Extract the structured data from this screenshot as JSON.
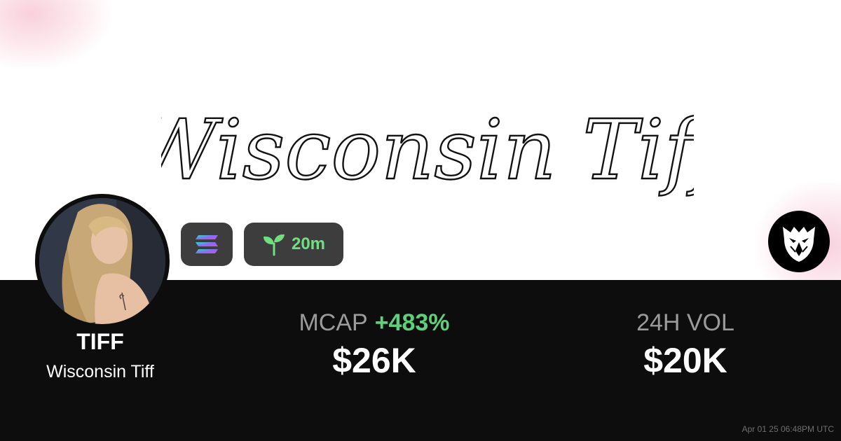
{
  "banner": {
    "script_title": "Wisconsin Tiff",
    "image_icon": "script-lettering-banner"
  },
  "avatar": {
    "icon": "profile-photo"
  },
  "badges": {
    "chain_icon": "solana-logo-icon",
    "age_icon": "sprout-icon",
    "age_text": "20m"
  },
  "platform": {
    "icon": "eagle-head-logo-icon"
  },
  "token": {
    "symbol": "TIFF",
    "name": "Wisconsin Tiff"
  },
  "stats": {
    "mcap_label": "MCAP",
    "mcap_change": "+483%",
    "mcap_value": "$26K",
    "vol_label": "24H VOL",
    "vol_value": "$20K"
  },
  "footer": {
    "timestamp": "Apr 01 25 06:48PM UTC"
  },
  "colors": {
    "panel_bg": "#0d0d0d",
    "badge_bg": "#3d3d3d",
    "positive_green": "#5fd07a",
    "sprout_green": "#6fe07f",
    "muted_label": "#9b9b9b",
    "accent_pink": "#f8c8d6"
  }
}
